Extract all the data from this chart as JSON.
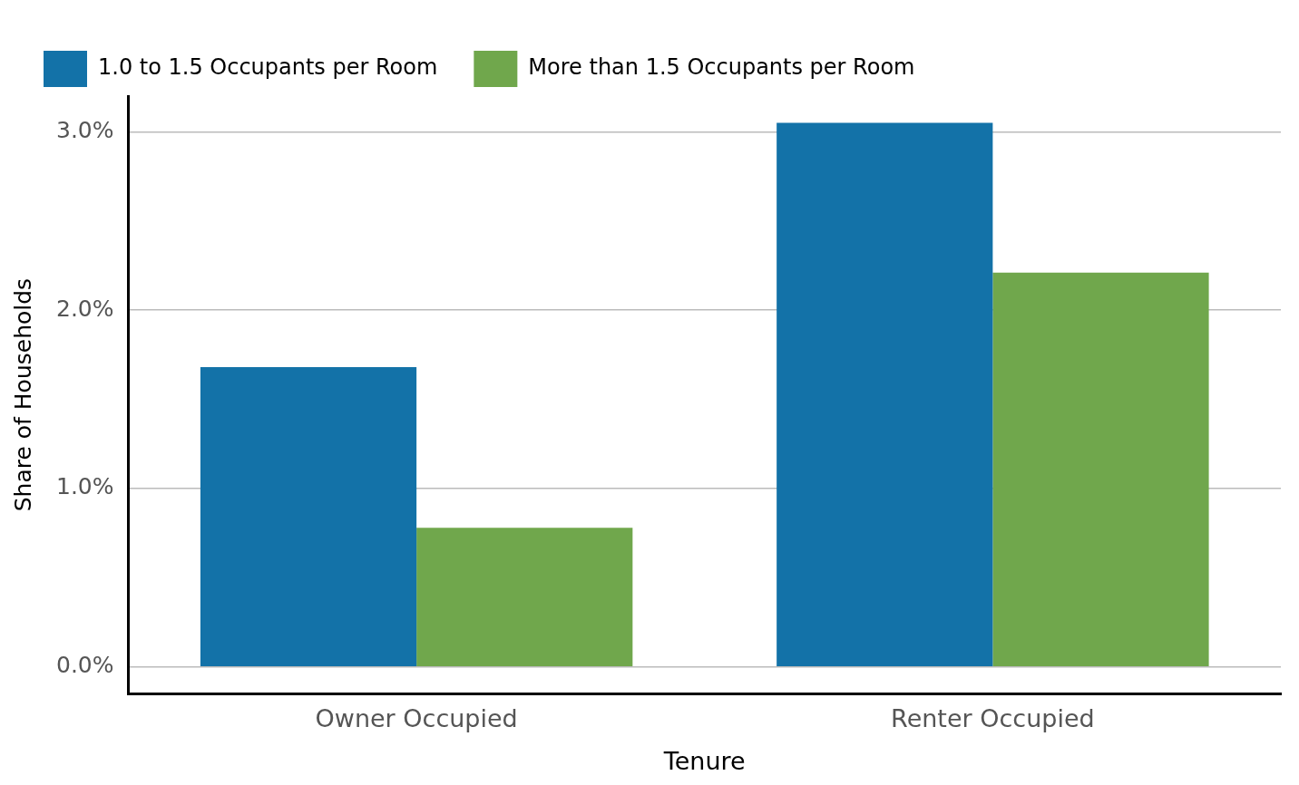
{
  "chart_data": {
    "type": "bar",
    "xlabel": "Tenure",
    "ylabel": "Share of Households",
    "categories": [
      "Owner Occupied",
      "Renter Occupied"
    ],
    "series": [
      {
        "name": "1.0 to 1.5 Occupants per Room",
        "color": "#1372a8",
        "values": [
          1.68,
          3.05
        ]
      },
      {
        "name": "More than 1.5 Occupants per Room",
        "color": "#70a74c",
        "values": [
          0.78,
          2.21
        ]
      }
    ],
    "ylim": [
      -0.15,
      3.2
    ],
    "yticks": [
      {
        "value": 0,
        "label": "0.0%"
      },
      {
        "value": 1,
        "label": "1.0%"
      },
      {
        "value": 2,
        "label": "2.0%"
      },
      {
        "value": 3,
        "label": "3.0%"
      }
    ],
    "grid": "y",
    "legend": "top left"
  }
}
